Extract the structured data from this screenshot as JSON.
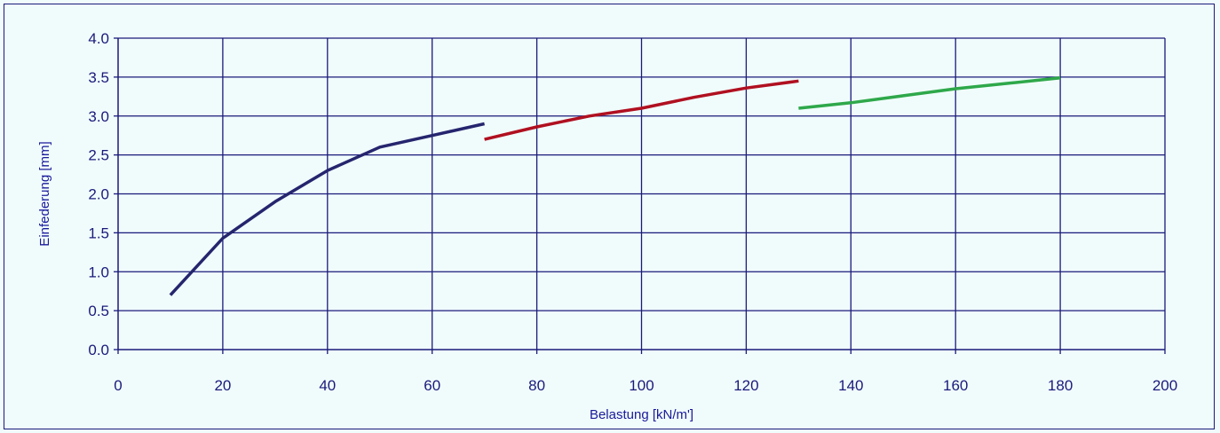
{
  "chart_data": {
    "type": "line",
    "title": "",
    "xlabel": "Belastung [kN/m']",
    "ylabel": "Einfederung [mm]",
    "xlim": [
      0,
      200
    ],
    "ylim": [
      0,
      4.0
    ],
    "x_ticks": [
      "0",
      "20",
      "40",
      "60",
      "80",
      "100",
      "120",
      "140",
      "160",
      "180",
      "200"
    ],
    "y_ticks": [
      "0.0",
      "0.5",
      "1.0",
      "1.5",
      "2.0",
      "2.5",
      "3.0",
      "3.5",
      "4.0"
    ],
    "grid": true,
    "legend": "none",
    "series": [
      {
        "color": "#25256e",
        "x": [
          10,
          20,
          30,
          40,
          50,
          60,
          70
        ],
        "y": [
          0.7,
          1.43,
          1.9,
          2.3,
          2.6,
          2.75,
          2.9
        ]
      },
      {
        "color": "#b01020",
        "x": [
          70,
          80,
          90,
          100,
          110,
          120,
          130
        ],
        "y": [
          2.7,
          2.86,
          3.0,
          3.1,
          3.24,
          3.36,
          3.45
        ]
      },
      {
        "color": "#2ea84a",
        "x": [
          130,
          140,
          150,
          160,
          170,
          180
        ],
        "y": [
          3.1,
          3.17,
          3.26,
          3.35,
          3.42,
          3.49
        ]
      }
    ]
  }
}
